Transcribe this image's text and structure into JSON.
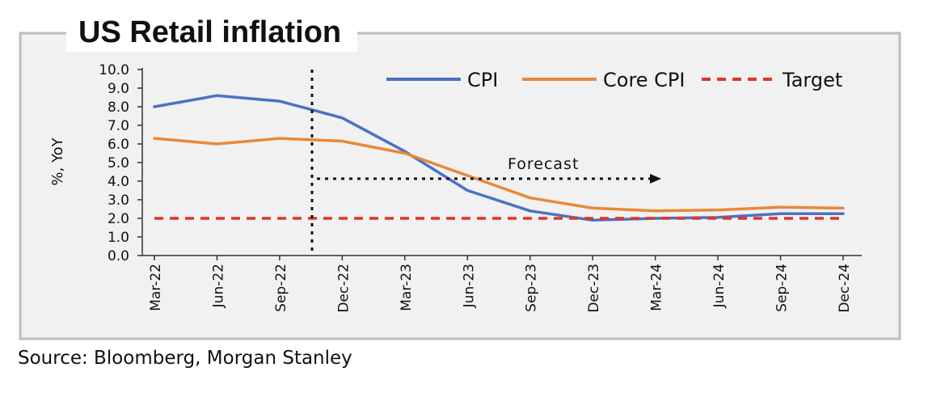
{
  "chart_data": {
    "type": "line",
    "title": "US Retail inflation",
    "ylabel": "%, YoY",
    "xlabel": "",
    "ylim": [
      0,
      10
    ],
    "yticks": [
      "0.0",
      "1.0",
      "2.0",
      "3.0",
      "4.0",
      "5.0",
      "6.0",
      "7.0",
      "8.0",
      "9.0",
      "10.0"
    ],
    "categories": [
      "Mar-22",
      "Jun-22",
      "Sep-22",
      "Dec-22",
      "Mar-23",
      "Jun-23",
      "Sep-23",
      "Dec-23",
      "Mar-24",
      "Jun-24",
      "Sep-24",
      "Dec-24"
    ],
    "series": [
      {
        "name": "CPI",
        "color": "#4a72c4",
        "style": "solid",
        "values": [
          8.0,
          8.6,
          8.3,
          7.4,
          5.6,
          3.5,
          2.4,
          1.9,
          2.0,
          2.05,
          2.25,
          2.25
        ]
      },
      {
        "name": "Core CPI",
        "color": "#e8883a",
        "style": "solid",
        "values": [
          6.3,
          6.0,
          6.3,
          6.15,
          5.5,
          4.3,
          3.1,
          2.55,
          2.4,
          2.45,
          2.6,
          2.55
        ]
      },
      {
        "name": "Target",
        "color": "#e0342b",
        "style": "dashed",
        "values": [
          2.0,
          2.0,
          2.0,
          2.0,
          2.0,
          2.0,
          2.0,
          2.0,
          2.0,
          2.0,
          2.0,
          2.0
        ]
      }
    ],
    "forecast_label": "Forecast",
    "grid": false,
    "legend_position": "top-right"
  },
  "source": "Source: Bloomberg, Morgan Stanley"
}
